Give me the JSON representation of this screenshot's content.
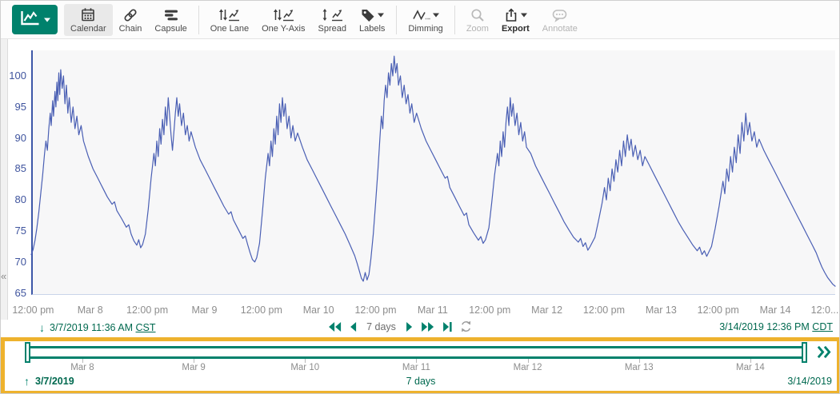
{
  "colors": {
    "accent": "#00816c",
    "accent_text": "#00694f",
    "series": "#4a5fb4",
    "axis_blue": "#3d57a8",
    "highlight": "#eeb22d",
    "tick_text": "#8d8d8d"
  },
  "toolbar": {
    "view_button": {
      "icon": "trend-icon",
      "caret": true
    },
    "groups": [
      {
        "buttons": [
          {
            "label": "Calendar",
            "icon": "calendar-icon",
            "selected": true,
            "enabled": true
          },
          {
            "label": "Chain",
            "icon": "chain-icon",
            "enabled": true
          },
          {
            "label": "Capsule",
            "icon": "capsule-icon",
            "enabled": true
          }
        ]
      },
      {
        "buttons": [
          {
            "label": "One Lane",
            "icon": "one-lane-icon",
            "enabled": true
          },
          {
            "label": "One Y-Axis",
            "icon": "one-y-axis-icon",
            "enabled": true
          },
          {
            "label": "Spread",
            "icon": "spread-icon",
            "enabled": true
          },
          {
            "label": "Labels",
            "icon": "labels-icon",
            "caret": true,
            "enabled": true
          }
        ]
      },
      {
        "buttons": [
          {
            "label": "Dimming",
            "icon": "dimming-icon",
            "caret": true,
            "enabled": true
          }
        ]
      },
      {
        "buttons": [
          {
            "label": "Zoom",
            "icon": "zoom-icon",
            "enabled": false
          },
          {
            "label": "Export",
            "icon": "export-icon",
            "caret": true,
            "enabled": true,
            "bold": true
          },
          {
            "label": "Annotate",
            "icon": "annotate-icon",
            "enabled": false
          }
        ]
      }
    ]
  },
  "panel": {
    "collapse_glyph": "«"
  },
  "chart_data": {
    "type": "line",
    "title": "",
    "xlabel": "",
    "ylabel": "",
    "ylim": [
      64,
      104
    ],
    "yticks": [
      100,
      95,
      90,
      85,
      80,
      75,
      70,
      65
    ],
    "xticks_hours": [
      0.4,
      12.4,
      24.4,
      36.4,
      48.4,
      60.4,
      72.4,
      84.4,
      96.4,
      108.4,
      120.4,
      132.4,
      144.4,
      156.4,
      168.4
    ],
    "xtick_labels": [
      "12:00 pm",
      "Mar 8",
      "12:00 pm",
      "Mar 9",
      "12:00 pm",
      "Mar 10",
      "12:00 pm",
      "Mar 11",
      "12:00 pm",
      "Mar 12",
      "12:00 pm",
      "Mar 13",
      "12:00 pm",
      "Mar 14",
      "12:0..."
    ],
    "x_unit": "hours after 3/7/2019 11:36 AM CST",
    "grid": false,
    "legend": false,
    "points": [
      [
        0,
        71.2
      ],
      [
        0.4,
        72
      ],
      [
        0.8,
        73.5
      ],
      [
        1.2,
        75.5
      ],
      [
        1.6,
        78
      ],
      [
        2,
        81
      ],
      [
        2.4,
        84
      ],
      [
        2.8,
        87.5
      ],
      [
        3.1,
        89.5
      ],
      [
        3.4,
        88
      ],
      [
        3.7,
        91.5
      ],
      [
        4,
        94
      ],
      [
        4.2,
        92
      ],
      [
        4.5,
        96
      ],
      [
        4.7,
        93.5
      ],
      [
        5,
        97.5
      ],
      [
        5.2,
        95
      ],
      [
        5.4,
        99
      ],
      [
        5.6,
        96
      ],
      [
        5.8,
        100.5
      ],
      [
        6,
        97
      ],
      [
        6.2,
        101
      ],
      [
        6.5,
        98
      ],
      [
        6.8,
        100
      ],
      [
        7.1,
        95.5
      ],
      [
        7.4,
        98.5
      ],
      [
        7.7,
        94
      ],
      [
        8,
        96.5
      ],
      [
        8.4,
        92.5
      ],
      [
        8.8,
        95
      ],
      [
        9.2,
        91.5
      ],
      [
        9.6,
        93.5
      ],
      [
        10,
        90.5
      ],
      [
        10.5,
        92
      ],
      [
        11,
        89.5
      ],
      [
        12,
        87
      ],
      [
        13,
        85
      ],
      [
        14,
        83.5
      ],
      [
        15,
        82
      ],
      [
        16,
        80.5
      ],
      [
        17,
        79.3
      ],
      [
        17.5,
        79.7
      ],
      [
        18,
        78.3
      ],
      [
        19,
        77
      ],
      [
        20,
        75.6
      ],
      [
        20.5,
        76
      ],
      [
        21,
        74.5
      ],
      [
        21.6,
        73.4
      ],
      [
        22.2,
        72.7
      ],
      [
        22.6,
        73.6
      ],
      [
        23,
        72.3
      ],
      [
        23.4,
        72.8
      ],
      [
        24,
        74.5
      ],
      [
        24.6,
        78.5
      ],
      [
        25.2,
        83.5
      ],
      [
        25.8,
        87.5
      ],
      [
        26.1,
        85.5
      ],
      [
        26.4,
        89.5
      ],
      [
        26.7,
        87
      ],
      [
        27,
        91.5
      ],
      [
        27.3,
        89
      ],
      [
        27.6,
        93
      ],
      [
        27.9,
        90.5
      ],
      [
        28.2,
        95
      ],
      [
        28.5,
        92
      ],
      [
        28.8,
        96.5
      ],
      [
        29.1,
        93.5
      ],
      [
        29.4,
        90.5
      ],
      [
        29.7,
        88
      ],
      [
        30,
        91
      ],
      [
        30.3,
        94
      ],
      [
        30.6,
        96.5
      ],
      [
        30.9,
        93.5
      ],
      [
        31.2,
        95.5
      ],
      [
        31.6,
        92
      ],
      [
        32,
        94
      ],
      [
        32.4,
        90.5
      ],
      [
        32.8,
        92
      ],
      [
        33.2,
        89.5
      ],
      [
        33.6,
        91
      ],
      [
        34.5,
        88.5
      ],
      [
        35.5,
        86.5
      ],
      [
        36.5,
        85
      ],
      [
        37.5,
        83.5
      ],
      [
        38.5,
        82
      ],
      [
        39.5,
        80.5
      ],
      [
        40.5,
        79
      ],
      [
        41.5,
        77.7
      ],
      [
        42,
        78.1
      ],
      [
        42.5,
        76.8
      ],
      [
        43.5,
        75.3
      ],
      [
        44.5,
        73.8
      ],
      [
        45,
        74.2
      ],
      [
        45.5,
        72.8
      ],
      [
        46,
        71.5
      ],
      [
        46.5,
        70.4
      ],
      [
        47,
        70
      ],
      [
        47.4,
        70.7
      ],
      [
        48,
        73
      ],
      [
        48.6,
        78
      ],
      [
        49.2,
        83.5
      ],
      [
        49.8,
        87.5
      ],
      [
        50.1,
        85.5
      ],
      [
        50.4,
        89.5
      ],
      [
        50.7,
        87
      ],
      [
        51,
        91.5
      ],
      [
        51.3,
        89
      ],
      [
        51.6,
        93.5
      ],
      [
        51.9,
        90.5
      ],
      [
        52.2,
        95.5
      ],
      [
        52.5,
        92.5
      ],
      [
        52.8,
        96.5
      ],
      [
        53.1,
        93.5
      ],
      [
        53.4,
        95.5
      ],
      [
        53.8,
        91.5
      ],
      [
        54.2,
        93.5
      ],
      [
        54.6,
        90
      ],
      [
        55,
        92
      ],
      [
        55.5,
        89.5
      ],
      [
        56,
        90.8
      ],
      [
        57,
        88.5
      ],
      [
        58,
        86.5
      ],
      [
        59,
        85
      ],
      [
        60,
        83.5
      ],
      [
        61,
        82
      ],
      [
        62,
        80.5
      ],
      [
        63,
        79
      ],
      [
        64,
        77.5
      ],
      [
        65,
        76
      ],
      [
        66,
        74.5
      ],
      [
        67,
        72.8
      ],
      [
        68,
        71
      ],
      [
        68.5,
        69.8
      ],
      [
        69,
        68.5
      ],
      [
        69.4,
        67.4
      ],
      [
        69.8,
        66.9
      ],
      [
        70.2,
        68.3
      ],
      [
        70.6,
        67.1
      ],
      [
        71,
        68
      ],
      [
        71.4,
        70.5
      ],
      [
        71.9,
        74.5
      ],
      [
        72.4,
        79.5
      ],
      [
        72.9,
        85
      ],
      [
        73.3,
        90
      ],
      [
        73.6,
        93.5
      ],
      [
        73.9,
        91.5
      ],
      [
        74.2,
        96
      ],
      [
        74.5,
        98.5
      ],
      [
        74.8,
        96.5
      ],
      [
        75.1,
        100.5
      ],
      [
        75.4,
        98.5
      ],
      [
        75.7,
        102
      ],
      [
        76,
        100
      ],
      [
        76.3,
        103.2
      ],
      [
        76.6,
        100.5
      ],
      [
        76.9,
        102
      ],
      [
        77.2,
        98.5
      ],
      [
        77.6,
        100
      ],
      [
        78,
        96.5
      ],
      [
        78.4,
        98.5
      ],
      [
        78.8,
        95.5
      ],
      [
        79.2,
        97
      ],
      [
        79.6,
        94
      ],
      [
        80,
        95.5
      ],
      [
        80.5,
        92.5
      ],
      [
        81,
        94
      ],
      [
        82,
        91.5
      ],
      [
        83,
        89.5
      ],
      [
        84,
        88
      ],
      [
        85,
        86.5
      ],
      [
        86,
        85
      ],
      [
        87,
        83.5
      ],
      [
        87.5,
        83.8
      ],
      [
        88,
        82
      ],
      [
        89,
        80.5
      ],
      [
        90,
        79
      ],
      [
        91,
        77.5
      ],
      [
        91.5,
        77.9
      ],
      [
        92,
        76
      ],
      [
        93,
        74.7
      ],
      [
        94,
        73.5
      ],
      [
        94.5,
        74.1
      ],
      [
        95,
        73
      ],
      [
        95.5,
        73.6
      ],
      [
        96.2,
        75.5
      ],
      [
        96.8,
        79.5
      ],
      [
        97.4,
        84
      ],
      [
        98,
        87.5
      ],
      [
        98.3,
        85.5
      ],
      [
        98.6,
        89.5
      ],
      [
        98.9,
        87
      ],
      [
        99.2,
        91
      ],
      [
        99.5,
        88.5
      ],
      [
        99.8,
        92.5
      ],
      [
        100.1,
        95
      ],
      [
        100.4,
        92
      ],
      [
        100.7,
        96.5
      ],
      [
        101,
        93.5
      ],
      [
        101.3,
        95.5
      ],
      [
        101.7,
        92
      ],
      [
        102.1,
        94
      ],
      [
        102.5,
        90.5
      ],
      [
        102.9,
        92.5
      ],
      [
        103.3,
        89.5
      ],
      [
        103.7,
        91
      ],
      [
        104.1,
        88.5
      ],
      [
        105,
        87.5
      ],
      [
        106,
        85.5
      ],
      [
        107,
        84
      ],
      [
        108,
        82.5
      ],
      [
        109,
        81
      ],
      [
        110,
        79.5
      ],
      [
        111,
        78
      ],
      [
        112,
        76.5
      ],
      [
        113,
        75.2
      ],
      [
        114,
        74
      ],
      [
        115,
        73.2
      ],
      [
        115.5,
        73.8
      ],
      [
        116,
        72.5
      ],
      [
        116.5,
        73.1
      ],
      [
        117,
        71.9
      ],
      [
        117.5,
        72.5
      ],
      [
        118.5,
        74
      ],
      [
        119.2,
        76.5
      ],
      [
        120,
        79.5
      ],
      [
        120.5,
        82
      ],
      [
        120.9,
        80
      ],
      [
        121.3,
        83.5
      ],
      [
        121.7,
        81.5
      ],
      [
        122.1,
        85
      ],
      [
        122.5,
        83
      ],
      [
        122.9,
        86.5
      ],
      [
        123.3,
        84.5
      ],
      [
        123.7,
        88
      ],
      [
        124.1,
        85.5
      ],
      [
        124.5,
        89.5
      ],
      [
        124.9,
        87
      ],
      [
        125.3,
        90.5
      ],
      [
        125.7,
        88
      ],
      [
        126.1,
        89.8
      ],
      [
        126.5,
        87
      ],
      [
        127,
        88.8
      ],
      [
        127.5,
        86.5
      ],
      [
        128,
        88
      ],
      [
        128.5,
        85.5
      ],
      [
        129,
        87
      ],
      [
        130,
        85.5
      ],
      [
        131,
        84
      ],
      [
        132,
        82.5
      ],
      [
        133,
        81
      ],
      [
        134,
        79.5
      ],
      [
        135,
        78
      ],
      [
        136,
        76.5
      ],
      [
        137,
        75.2
      ],
      [
        138,
        74
      ],
      [
        139,
        72.8
      ],
      [
        140,
        71.8
      ],
      [
        140.5,
        72.4
      ],
      [
        141,
        71.2
      ],
      [
        141.5,
        71.8
      ],
      [
        142,
        70.9
      ],
      [
        143,
        72.5
      ],
      [
        143.8,
        75.5
      ],
      [
        144.6,
        79
      ],
      [
        145.4,
        83
      ],
      [
        145.8,
        81
      ],
      [
        146.2,
        85
      ],
      [
        146.6,
        83
      ],
      [
        147,
        87
      ],
      [
        147.4,
        84.5
      ],
      [
        147.8,
        88.5
      ],
      [
        148.2,
        86
      ],
      [
        148.6,
        90.5
      ],
      [
        149,
        87.5
      ],
      [
        149.4,
        92.5
      ],
      [
        149.8,
        89.5
      ],
      [
        150.2,
        94
      ],
      [
        150.6,
        90.5
      ],
      [
        151,
        92.5
      ],
      [
        151.5,
        89.5
      ],
      [
        152,
        91
      ],
      [
        152.5,
        88.5
      ],
      [
        153,
        89.8
      ],
      [
        154,
        88
      ],
      [
        155,
        86.5
      ],
      [
        156,
        85
      ],
      [
        157,
        83.5
      ],
      [
        158,
        82
      ],
      [
        159,
        80.5
      ],
      [
        160,
        79
      ],
      [
        161,
        77.5
      ],
      [
        162,
        76
      ],
      [
        163,
        74.5
      ],
      [
        164,
        73
      ],
      [
        165,
        71.5
      ],
      [
        165.6,
        70.3
      ],
      [
        166.2,
        69.2
      ],
      [
        166.8,
        68.3
      ],
      [
        167.4,
        67.5
      ],
      [
        168,
        66.9
      ],
      [
        168.5,
        66.4
      ],
      [
        169,
        66.1
      ]
    ]
  },
  "range_bar": {
    "start": "3/7/2019 11:36 AM",
    "start_tz": "CST",
    "end": "3/14/2019 12:36 PM",
    "end_tz": "CDT",
    "duration_label": "7 days",
    "nav_left": [
      {
        "icon": "rewind-icon",
        "name": "rewind-button"
      },
      {
        "icon": "step-back-icon",
        "name": "step-back-button"
      }
    ],
    "nav_right": [
      {
        "icon": "step-forward-icon",
        "name": "step-forward-button"
      },
      {
        "icon": "fast-forward-icon",
        "name": "fast-forward-button"
      },
      {
        "icon": "skip-to-end-icon",
        "name": "skip-to-end-button"
      },
      {
        "icon": "refresh-icon",
        "name": "refresh-button"
      }
    ]
  },
  "timebar": {
    "start_date": "3/7/2019",
    "end_date": "3/14/2019",
    "duration_label": "7 days",
    "day_tick_hours": [
      12.4,
      36.4,
      60.4,
      84.4,
      108.4,
      132.4,
      156.4
    ],
    "day_ticks": [
      "Mar 8",
      "Mar 9",
      "Mar 10",
      "Mar 11",
      "Mar 12",
      "Mar 13",
      "Mar 14"
    ]
  }
}
